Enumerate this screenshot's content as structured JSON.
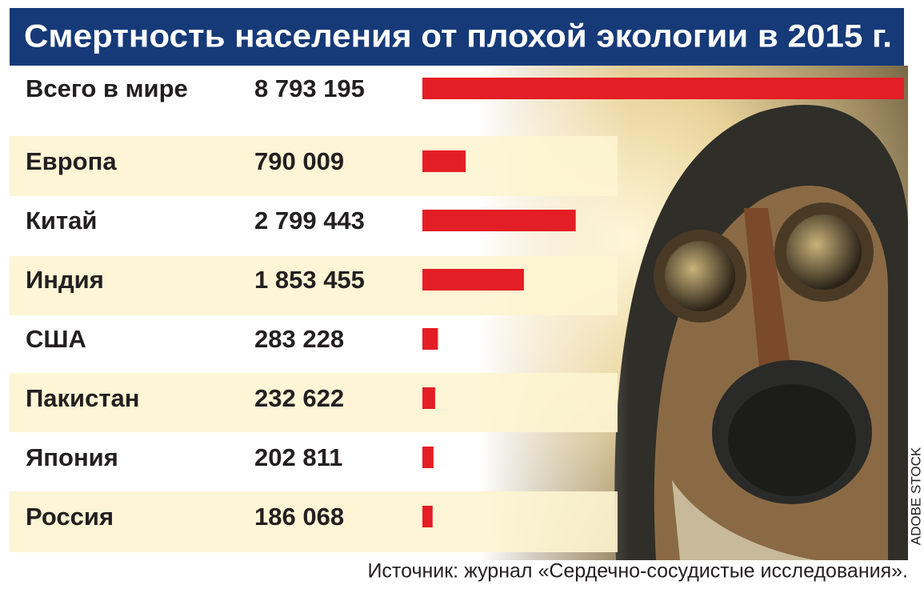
{
  "chart_data": {
    "type": "bar",
    "title": "Смертность населения от плохой экологии в 2015 г.",
    "categories": [
      "Всего в мире",
      "Европа",
      "Китай",
      "Индия",
      "США",
      "Пакистан",
      "Япония",
      "Россия"
    ],
    "values": [
      8793195,
      790009,
      2799443,
      1853455,
      283228,
      232622,
      202811,
      186068
    ],
    "value_labels": [
      "8 793 195",
      "790 009",
      "2 799 443",
      "1 853 455",
      "283 228",
      "232 622",
      "202 811",
      "186 068"
    ],
    "color": "#e31e24"
  },
  "source": "Источник: журнал «Сердечно-сосудистые исследования».",
  "credit": "ADOBE STOCK"
}
